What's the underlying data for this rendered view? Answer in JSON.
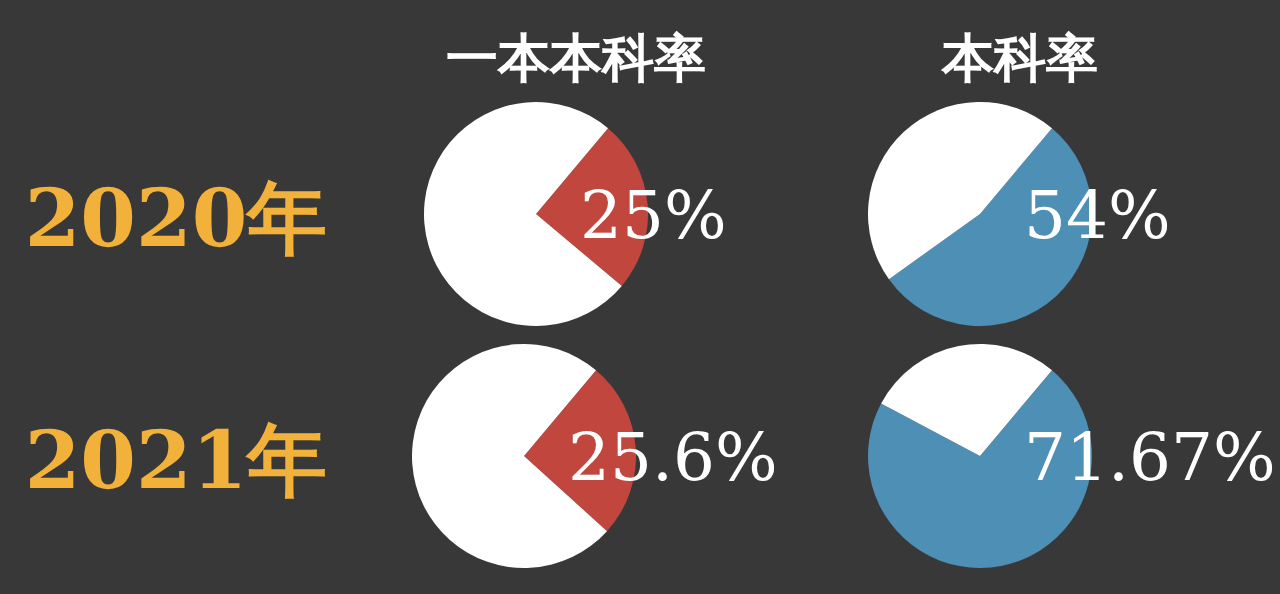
{
  "chart_data": [
    {
      "type": "pie",
      "title": "一本本科率",
      "annotations": [
        "2020年"
      ],
      "categories": [
        null,
        null
      ],
      "values": [
        25,
        75
      ],
      "colors": [
        "#c0463e",
        "#ffffff"
      ],
      "value_labels": [
        "25%",
        null
      ]
    },
    {
      "type": "pie",
      "title": "本科率",
      "categories": [
        null,
        null
      ],
      "values": [
        54,
        46
      ],
      "colors": [
        "#4d8fb5",
        "#ffffff"
      ],
      "value_labels": [
        "54%",
        null
      ]
    },
    {
      "type": "pie",
      "annotations": [
        "2021年"
      ],
      "categories": [
        null,
        null
      ],
      "values": [
        25.6,
        74.4
      ],
      "colors": [
        "#c0463e",
        "#ffffff"
      ],
      "value_labels": [
        "25.6%",
        null
      ]
    },
    {
      "type": "pie",
      "categories": [
        null,
        null
      ],
      "values": [
        71.67,
        28.33
      ],
      "colors": [
        "#4d8fb5",
        "#ffffff"
      ],
      "value_labels": [
        "71.67%",
        null
      ]
    }
  ]
}
